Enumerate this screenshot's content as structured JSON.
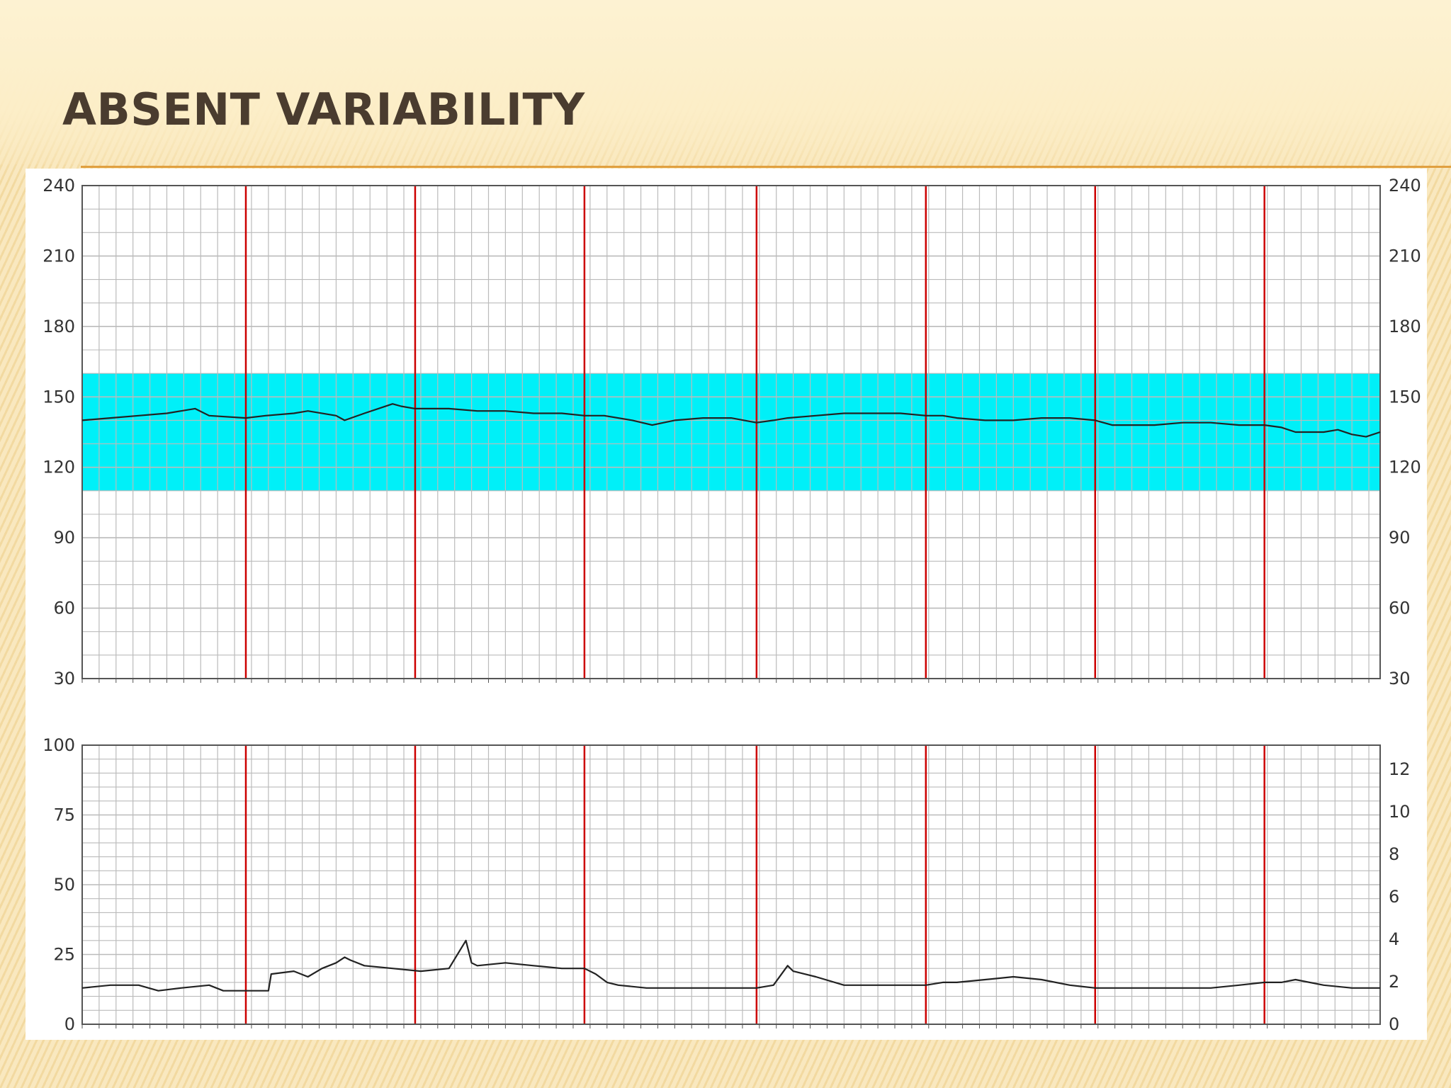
{
  "slide": {
    "title": "ABSENT VARIABILITY",
    "colors": {
      "title": "#4a3c2f",
      "rule": "#e0a040",
      "band": "#00f0f8",
      "minute_line": "#cc0000",
      "grid": "#bbbbbb"
    }
  },
  "chart_data": [
    {
      "type": "line",
      "title": "",
      "xlabel": "",
      "ylabel": "",
      "ylim": [
        30,
        240
      ],
      "xlim": [
        0,
        46
      ],
      "y_ticks_left": [
        30,
        60,
        90,
        120,
        150,
        180,
        210,
        240
      ],
      "y_ticks_right": [
        30,
        60,
        90,
        120,
        150,
        180,
        210,
        240
      ],
      "y_tick_labels_left": [
        "30",
        "60",
        "90",
        "120",
        "150",
        "180",
        "210",
        "240"
      ],
      "y_tick_labels_right": [
        "30",
        "60",
        "90",
        "120",
        "150",
        "180",
        "210",
        "240"
      ],
      "shaded_band": [
        110,
        160
      ],
      "grid": true,
      "red_vertical_lines_x": [
        5.8,
        11.8,
        17.8,
        23.9,
        29.9,
        35.9,
        41.9
      ],
      "series": [
        {
          "x": [
            0,
            1,
            2,
            3,
            4,
            4.5,
            5.8,
            6.5,
            7.5,
            8,
            9,
            9.3,
            10,
            11,
            11.3,
            11.8,
            12.5,
            13,
            14,
            15,
            16,
            17,
            17.8,
            18.5,
            19.5,
            20.2,
            21,
            22,
            23,
            23.9,
            24.5,
            25,
            26,
            27,
            28,
            29,
            29.9,
            30.5,
            31,
            32,
            33,
            34,
            35,
            35.9,
            36.5,
            37,
            38,
            39,
            40,
            41,
            41.9,
            42.5,
            43,
            44,
            44.5,
            45,
            45.5,
            46
          ],
          "y": [
            140,
            141,
            142,
            143,
            145,
            142,
            141,
            142,
            143,
            144,
            142,
            140,
            143,
            147,
            146,
            145,
            145,
            145,
            144,
            144,
            143,
            143,
            142,
            142,
            140,
            138,
            140,
            141,
            141,
            139,
            140,
            141,
            142,
            143,
            143,
            143,
            142,
            142,
            141,
            140,
            140,
            141,
            141,
            140,
            138,
            138,
            138,
            139,
            139,
            138,
            138,
            137,
            135,
            135,
            136,
            134,
            133,
            135
          ]
        }
      ]
    },
    {
      "type": "line",
      "title": "",
      "xlabel": "",
      "ylabel": "",
      "ylim": [
        0,
        100
      ],
      "xlim": [
        0,
        46
      ],
      "y_ticks_left": [
        0,
        25,
        50,
        75,
        100
      ],
      "y_tick_labels_left": [
        "0",
        "25",
        "50",
        "75",
        "100"
      ],
      "y_tick_labels_right": [
        "0",
        "2",
        "4",
        "6",
        "8",
        "10",
        "12"
      ],
      "grid": true,
      "red_vertical_lines_x": [
        5.8,
        11.8,
        17.8,
        23.9,
        29.9,
        35.9,
        41.9
      ],
      "series": [
        {
          "x": [
            0,
            1,
            2,
            2.7,
            3.5,
            4.5,
            5,
            5.8,
            6.6,
            6.7,
            7.5,
            8,
            8.5,
            9,
            9.3,
            9.5,
            10,
            11,
            12,
            13,
            13.6,
            13.8,
            14,
            15,
            16,
            17,
            17.8,
            18.2,
            18.6,
            19,
            20,
            21,
            22,
            23,
            23.9,
            24.5,
            25,
            25.2,
            26,
            27,
            28,
            29,
            29.9,
            30.5,
            31,
            32,
            33,
            34,
            35,
            35.9,
            37,
            38,
            39,
            40,
            41,
            41.9,
            42.5,
            43,
            44,
            45,
            46
          ],
          "y": [
            13,
            14,
            14,
            12,
            13,
            14,
            12,
            12,
            12,
            18,
            19,
            17,
            20,
            22,
            24,
            23,
            21,
            20,
            19,
            20,
            30,
            22,
            21,
            22,
            21,
            20,
            20,
            18,
            15,
            14,
            13,
            13,
            13,
            13,
            13,
            14,
            21,
            19,
            17,
            14,
            14,
            14,
            14,
            15,
            15,
            16,
            17,
            16,
            14,
            13,
            13,
            13,
            13,
            13,
            14,
            15,
            15,
            16,
            14,
            13,
            13
          ]
        }
      ]
    }
  ]
}
